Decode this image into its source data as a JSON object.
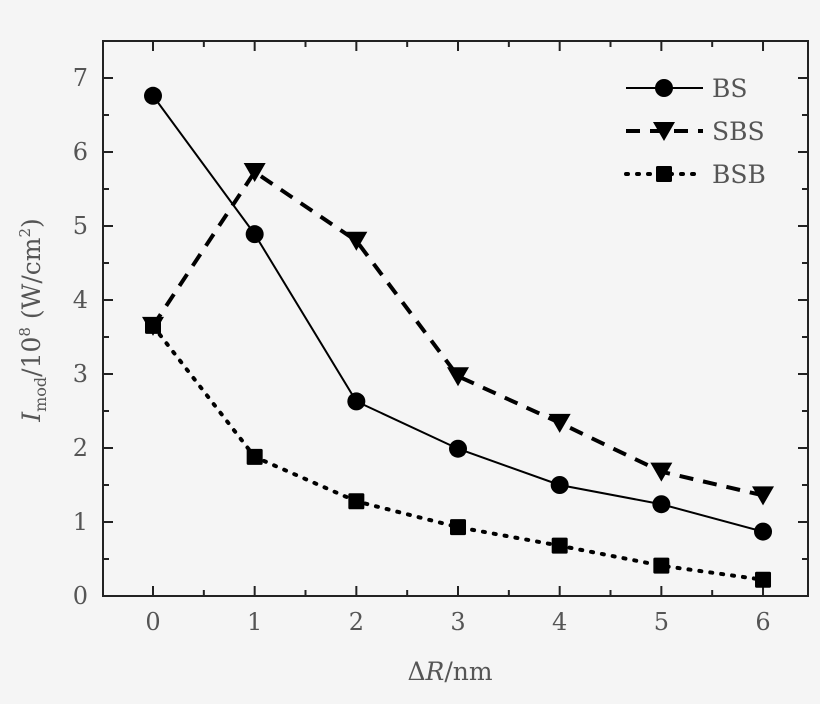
{
  "chart_data": {
    "type": "line",
    "title": "",
    "xlabel": "ΔR/nm",
    "ylabel": "I_mod/10^8 (W/cm^2)",
    "ylabel_parts": {
      "main": "I",
      "sub": "mod",
      "mid": "/10",
      "sup8": "8",
      "unit": " (W/cm",
      "sup2": "2",
      "close": ")"
    },
    "xlabel_parts": {
      "delta": "Δ",
      "var": "R",
      "unit": "/nm"
    },
    "x": [
      0,
      1,
      2,
      3,
      4,
      5,
      6
    ],
    "xlim": [
      -0.5,
      6.45
    ],
    "ylim": [
      0,
      7.5
    ],
    "xticks": [
      "0",
      "1",
      "2",
      "3",
      "4",
      "5",
      "6"
    ],
    "yticks": [
      "0",
      "1",
      "2",
      "3",
      "4",
      "5",
      "6",
      "7"
    ],
    "grid": false,
    "legend_position": "upper right",
    "series": [
      {
        "name": "BS",
        "marker": "circle",
        "linestyle": "solid",
        "values": [
          6.76,
          4.89,
          2.63,
          1.99,
          1.5,
          1.24,
          0.87
        ]
      },
      {
        "name": "SBS",
        "marker": "triangle-down",
        "linestyle": "dashed",
        "values": [
          3.65,
          5.73,
          4.8,
          2.97,
          2.34,
          1.68,
          1.36
        ]
      },
      {
        "name": "BSB",
        "marker": "square",
        "linestyle": "dotted",
        "values": [
          3.65,
          1.88,
          1.28,
          0.93,
          0.68,
          0.41,
          0.22
        ]
      }
    ]
  },
  "colors": {
    "background": "#f5f5f5",
    "line": "#000000",
    "text": "#555555",
    "axis": "#222222"
  }
}
